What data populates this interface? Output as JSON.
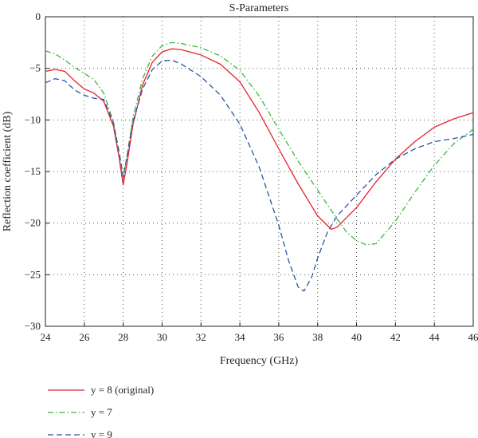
{
  "chart_data": {
    "type": "line",
    "title": "S-Parameters",
    "xlabel": "Frequency (GHz)",
    "ylabel": "Reflection coefficient (dB)",
    "xlim": [
      24,
      46
    ],
    "ylim": [
      -30,
      0
    ],
    "xticks": [
      24,
      26,
      28,
      30,
      32,
      34,
      36,
      38,
      40,
      42,
      44,
      46
    ],
    "yticks": [
      0,
      -5,
      -10,
      -15,
      -20,
      -25,
      -30
    ],
    "grid": true,
    "legend_placement": "bottom-left, below plot",
    "series": [
      {
        "name": "y = 8 (original)",
        "color": "#e8212a",
        "style": "solid",
        "x": [
          24,
          24.5,
          25,
          25.5,
          26,
          26.5,
          27,
          27.5,
          27.8,
          28,
          28.2,
          28.5,
          29,
          29.5,
          30,
          30.5,
          31,
          32,
          33,
          34,
          35,
          36,
          37,
          38,
          38.7,
          39,
          40,
          41,
          42,
          43,
          44,
          45,
          46
        ],
        "y": [
          -5.3,
          -5.1,
          -5.3,
          -6.2,
          -7.0,
          -7.4,
          -8.2,
          -10.6,
          -13.8,
          -16.3,
          -14.2,
          -10.5,
          -6.6,
          -4.4,
          -3.4,
          -3.1,
          -3.2,
          -3.7,
          -4.6,
          -6.3,
          -9.3,
          -12.8,
          -16.2,
          -19.3,
          -20.6,
          -20.4,
          -18.5,
          -16.0,
          -13.8,
          -12.1,
          -10.7,
          -9.9,
          -9.3
        ]
      },
      {
        "name": "y = 7",
        "color": "#3db53d",
        "style": "dash-dot",
        "x": [
          24,
          24.5,
          25,
          25.5,
          26,
          26.5,
          27,
          27.5,
          27.8,
          28,
          28.2,
          28.5,
          29,
          29.5,
          30,
          30.5,
          31,
          32,
          33,
          34,
          35,
          36,
          37,
          38,
          39,
          39.5,
          40,
          40.5,
          41,
          42,
          43,
          44,
          45,
          46
        ],
        "y": [
          -3.3,
          -3.6,
          -4.2,
          -4.9,
          -5.5,
          -6.1,
          -7.4,
          -10.2,
          -13.5,
          -15.8,
          -13.5,
          -9.8,
          -6.0,
          -3.8,
          -2.8,
          -2.5,
          -2.6,
          -3.0,
          -3.8,
          -5.2,
          -7.7,
          -10.9,
          -14.0,
          -16.8,
          -19.6,
          -20.9,
          -21.7,
          -22.1,
          -22.0,
          -19.8,
          -17.0,
          -14.4,
          -12.3,
          -10.9
        ]
      },
      {
        "name": "y = 9",
        "color": "#2b54a6",
        "style": "dashed",
        "x": [
          24,
          24.5,
          25,
          25.5,
          26,
          26.5,
          27,
          27.5,
          27.8,
          28,
          28.2,
          28.5,
          29,
          29.5,
          30,
          30.5,
          31,
          32,
          33,
          34,
          35,
          36,
          36.5,
          37,
          37.3,
          37.7,
          38,
          38.5,
          39,
          40,
          41,
          42,
          43,
          44,
          45,
          46
        ],
        "y": [
          -6.4,
          -6.0,
          -6.2,
          -7.1,
          -7.6,
          -7.9,
          -8.0,
          -10.3,
          -13.2,
          -15.5,
          -13.5,
          -10.2,
          -7.0,
          -5.1,
          -4.3,
          -4.2,
          -4.6,
          -5.8,
          -7.6,
          -10.4,
          -14.6,
          -20.2,
          -23.6,
          -26.2,
          -26.6,
          -25.2,
          -23.4,
          -20.9,
          -19.3,
          -17.3,
          -15.3,
          -13.8,
          -12.8,
          -12.1,
          -11.8,
          -11.4
        ]
      }
    ]
  }
}
